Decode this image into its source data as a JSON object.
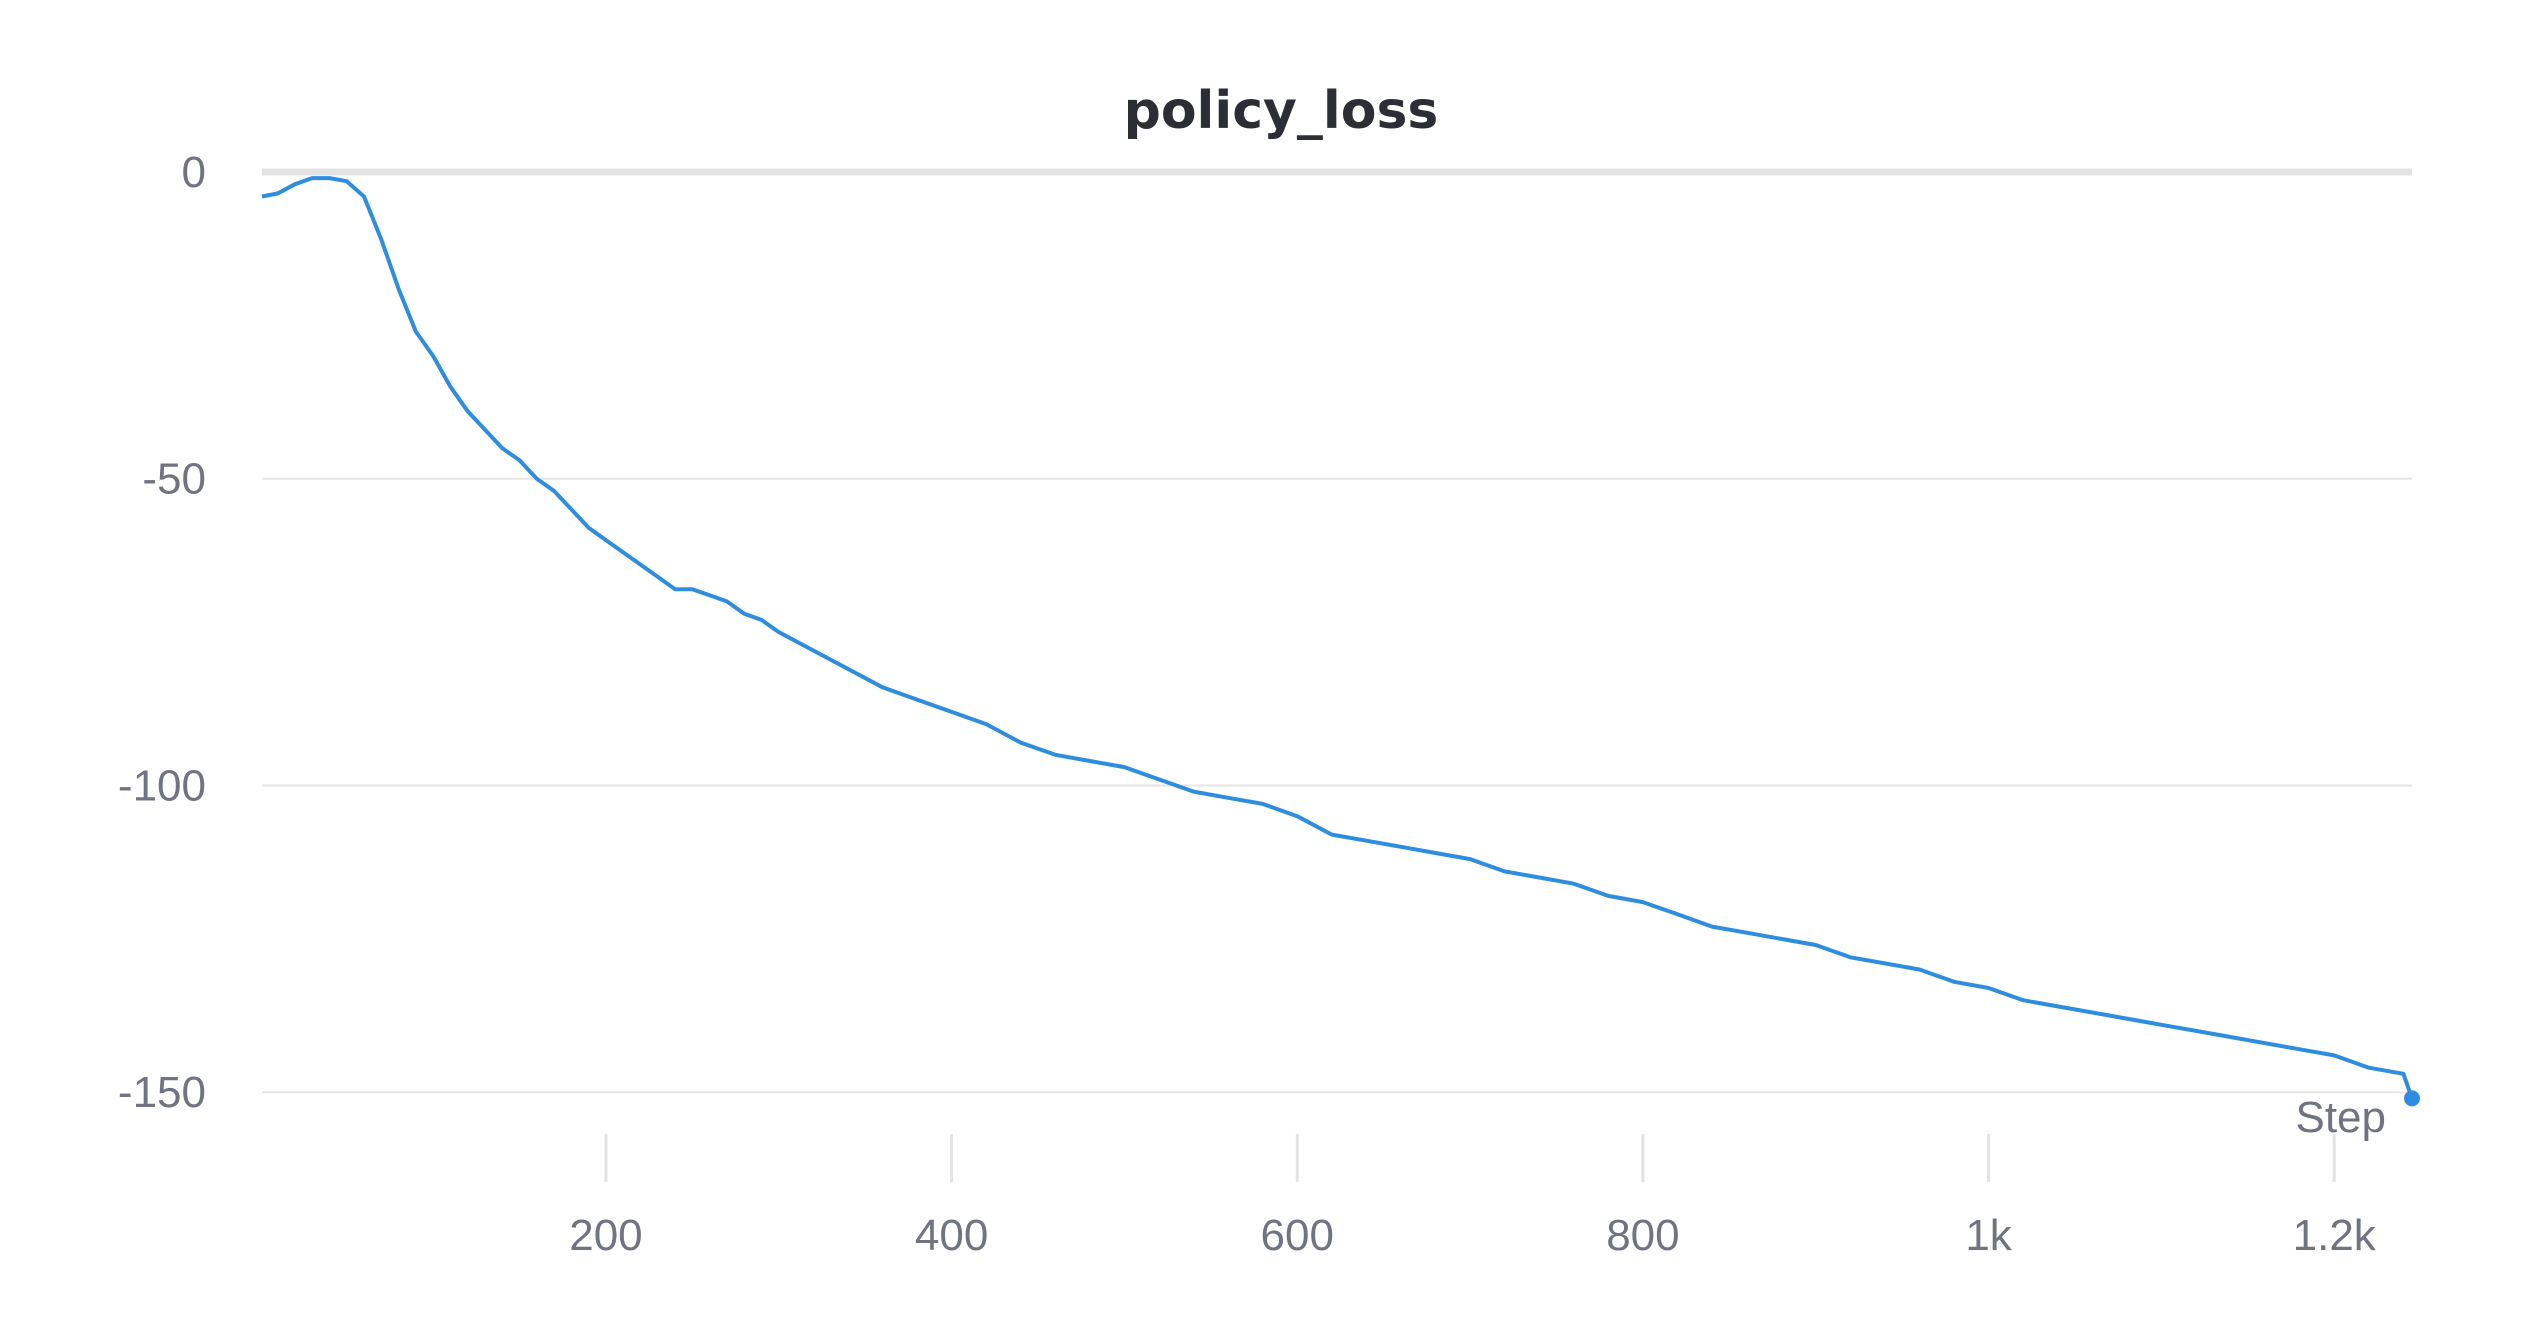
{
  "chart_data": {
    "type": "line",
    "title": "policy_loss",
    "xlabel": "Step",
    "ylabel": "",
    "x_ticks": [
      200,
      400,
      600,
      800,
      1000,
      1200
    ],
    "x_tick_labels": [
      "200",
      "400",
      "600",
      "800",
      "1k",
      "1.2k"
    ],
    "y_ticks": [
      0,
      -50,
      -100,
      -150
    ],
    "y_tick_labels": [
      "0",
      "-50",
      "-100",
      "-150"
    ],
    "xlim": [
      1,
      1245
    ],
    "ylim": [
      -163,
      0
    ],
    "grid": true,
    "legend": "none",
    "series": [
      {
        "color": "#2f8ddf",
        "x": [
          1,
          10,
          20,
          30,
          40,
          50,
          60,
          70,
          80,
          90,
          100,
          110,
          120,
          130,
          140,
          150,
          160,
          170,
          180,
          190,
          200,
          210,
          220,
          230,
          240,
          250,
          260,
          270,
          280,
          290,
          300,
          320,
          340,
          360,
          380,
          400,
          420,
          440,
          460,
          480,
          500,
          520,
          540,
          560,
          580,
          600,
          620,
          640,
          660,
          680,
          700,
          720,
          740,
          760,
          780,
          800,
          820,
          840,
          860,
          880,
          900,
          920,
          940,
          960,
          980,
          1000,
          1020,
          1040,
          1060,
          1080,
          1100,
          1120,
          1140,
          1160,
          1180,
          1200,
          1220,
          1240,
          1245
        ],
        "y": [
          -4,
          -3.5,
          -2,
          -1,
          -1,
          -1.5,
          -4,
          -11,
          -19,
          -26,
          -30,
          -35,
          -39,
          -42,
          -45,
          -47,
          -50,
          -52,
          -55,
          -58,
          -60,
          -62,
          -64,
          -66,
          -68,
          -68,
          -69,
          -70,
          -72,
          -73,
          -75,
          -78,
          -81,
          -84,
          -86,
          -88,
          -90,
          -93,
          -95,
          -96,
          -97,
          -99,
          -101,
          -102,
          -103,
          -105,
          -108,
          -109,
          -110,
          -111,
          -112,
          -114,
          -115,
          -116,
          -118,
          -119,
          -121,
          -123,
          -124,
          -125,
          -126,
          -128,
          -129,
          -130,
          -132,
          -133,
          -135,
          -136,
          -137,
          -138,
          -139,
          -140,
          -141,
          -142,
          -143,
          -144,
          -146,
          -147,
          -151
        ]
      }
    ]
  }
}
